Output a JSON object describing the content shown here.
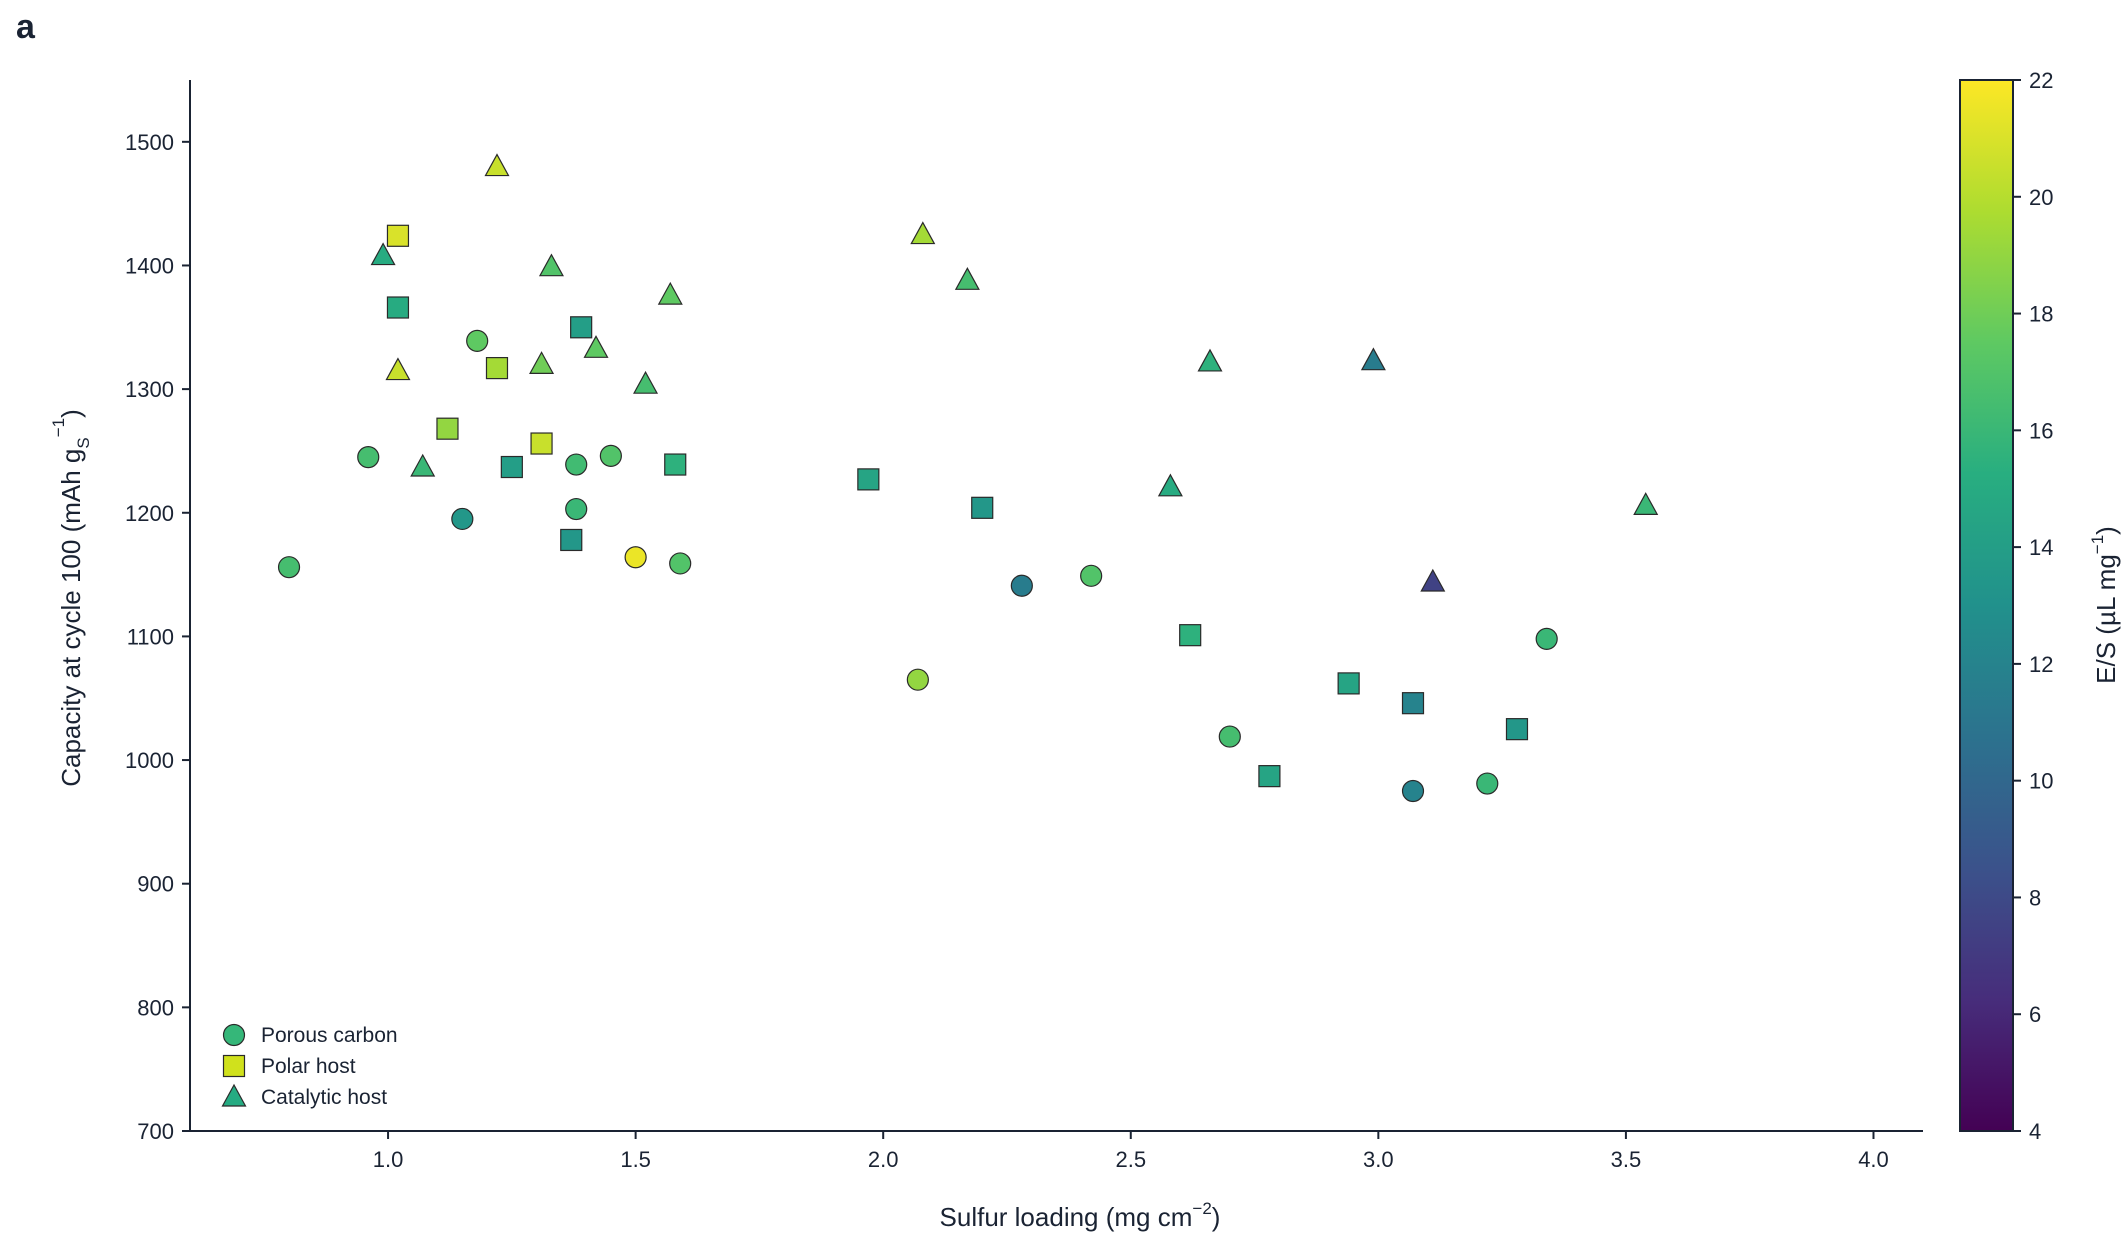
{
  "chart_data": {
    "type": "scatter",
    "panel_label": "a",
    "xlabel": "Sulfur loading (mg cm",
    "xlabel_sup": "−2",
    "xlabel_end": ")",
    "ylabel": "Capacity at cycle 100 (mAh g",
    "ylabel_sub": "S",
    "ylabel_sup": "−1",
    "ylabel_end": ")",
    "xlim": [
      0.6,
      4.1
    ],
    "ylim": [
      700,
      1550
    ],
    "xticks": [
      "1.0",
      "1.5",
      "2.0",
      "2.5",
      "3.0",
      "3.5",
      "4.0"
    ],
    "yticks": [
      "700",
      "800",
      "900",
      "1000",
      "1100",
      "1200",
      "1300",
      "1400",
      "1500"
    ],
    "grid": false,
    "legend_position": "bottom-left",
    "colorbar": {
      "label": "E/S (µL mg",
      "label_sup": "−1",
      "label_end": ")",
      "min": 4,
      "max": 22,
      "colormap": "viridis",
      "ticks": [
        "4",
        "6",
        "8",
        "10",
        "12",
        "14",
        "16",
        "18",
        "20",
        "22"
      ]
    },
    "series": [
      {
        "name": "Porous carbon",
        "marker": "circle",
        "legend_color": "#35b779",
        "points": [
          {
            "x": 0.8,
            "y": 1156,
            "c": 16.5
          },
          {
            "x": 0.96,
            "y": 1245,
            "c": 16.5
          },
          {
            "x": 1.15,
            "y": 1195,
            "c": 13.5
          },
          {
            "x": 1.18,
            "y": 1339,
            "c": 17.5
          },
          {
            "x": 1.38,
            "y": 1239,
            "c": 16.3
          },
          {
            "x": 1.38,
            "y": 1203,
            "c": 16.0
          },
          {
            "x": 1.45,
            "y": 1246,
            "c": 17.0
          },
          {
            "x": 1.5,
            "y": 1164,
            "c": 21.5
          },
          {
            "x": 1.59,
            "y": 1159,
            "c": 17.0
          },
          {
            "x": 2.07,
            "y": 1065,
            "c": 19.0
          },
          {
            "x": 2.28,
            "y": 1141,
            "c": 11.5
          },
          {
            "x": 2.42,
            "y": 1149,
            "c": 17.0
          },
          {
            "x": 2.7,
            "y": 1019,
            "c": 16.5
          },
          {
            "x": 3.07,
            "y": 975,
            "c": 12.0
          },
          {
            "x": 3.22,
            "y": 981,
            "c": 16.0
          },
          {
            "x": 3.34,
            "y": 1098,
            "c": 16.0
          }
        ]
      },
      {
        "name": "Polar host",
        "marker": "square",
        "legend_color": "#d0e11c",
        "points": [
          {
            "x": 1.02,
            "y": 1424,
            "c": 21.0
          },
          {
            "x": 1.02,
            "y": 1366,
            "c": 15.0
          },
          {
            "x": 1.12,
            "y": 1268,
            "c": 19.0
          },
          {
            "x": 1.22,
            "y": 1317,
            "c": 19.5
          },
          {
            "x": 1.25,
            "y": 1237,
            "c": 14.0
          },
          {
            "x": 1.31,
            "y": 1256,
            "c": 20.5
          },
          {
            "x": 1.37,
            "y": 1178,
            "c": 13.5
          },
          {
            "x": 1.39,
            "y": 1350,
            "c": 14.0
          },
          {
            "x": 1.58,
            "y": 1239,
            "c": 15.5
          },
          {
            "x": 1.97,
            "y": 1227,
            "c": 14.5
          },
          {
            "x": 2.2,
            "y": 1204,
            "c": 13.5
          },
          {
            "x": 2.62,
            "y": 1101,
            "c": 15.5
          },
          {
            "x": 2.78,
            "y": 987,
            "c": 14.5
          },
          {
            "x": 2.94,
            "y": 1062,
            "c": 14.5
          },
          {
            "x": 3.07,
            "y": 1046,
            "c": 12.0
          },
          {
            "x": 3.28,
            "y": 1025,
            "c": 13.5
          }
        ]
      },
      {
        "name": "Catalytic host",
        "marker": "triangle",
        "legend_color": "#25ab82",
        "points": [
          {
            "x": 0.99,
            "y": 1408,
            "c": 15.0
          },
          {
            "x": 1.02,
            "y": 1315,
            "c": 20.5
          },
          {
            "x": 1.07,
            "y": 1237,
            "c": 16.0
          },
          {
            "x": 1.22,
            "y": 1480,
            "c": 20.5
          },
          {
            "x": 1.31,
            "y": 1320,
            "c": 18.0
          },
          {
            "x": 1.33,
            "y": 1399,
            "c": 17.0
          },
          {
            "x": 1.42,
            "y": 1333,
            "c": 17.5
          },
          {
            "x": 1.52,
            "y": 1304,
            "c": 16.5
          },
          {
            "x": 1.57,
            "y": 1376,
            "c": 17.5
          },
          {
            "x": 2.08,
            "y": 1425,
            "c": 19.5
          },
          {
            "x": 2.17,
            "y": 1388,
            "c": 16.5
          },
          {
            "x": 2.58,
            "y": 1221,
            "c": 15.0
          },
          {
            "x": 2.66,
            "y": 1322,
            "c": 15.5
          },
          {
            "x": 2.99,
            "y": 1323,
            "c": 11.5
          },
          {
            "x": 3.11,
            "y": 1144,
            "c": 7.5
          },
          {
            "x": 3.54,
            "y": 1206,
            "c": 16.0
          }
        ]
      }
    ]
  }
}
